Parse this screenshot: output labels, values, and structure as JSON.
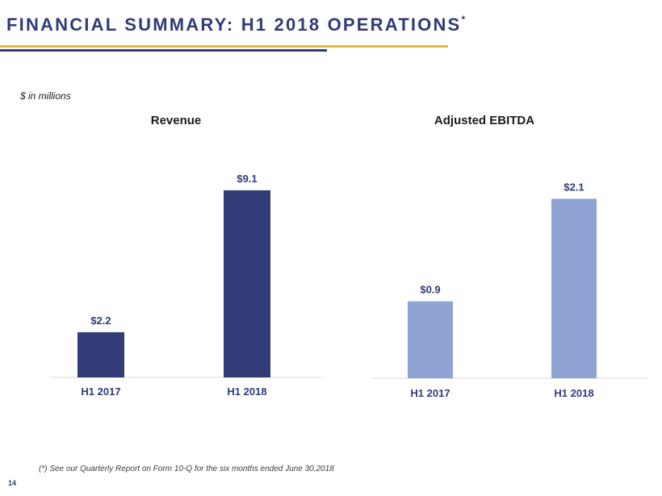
{
  "header": {
    "title": "FINANCIAL SUMMARY: H1 2018 OPERATIONS",
    "title_mark": "*"
  },
  "units_note": "$ in millions",
  "chart_data": [
    {
      "type": "bar",
      "title": "Revenue",
      "categories": [
        "H1 2017",
        "H1 2018"
      ],
      "values": [
        2.2,
        9.1
      ],
      "value_labels": [
        "$2.2",
        "$9.1"
      ],
      "color": "#323d78",
      "ylim": [
        0,
        10
      ],
      "grid": false,
      "legend": "none"
    },
    {
      "type": "bar",
      "title": "Adjusted EBITDA",
      "categories": [
        "H1 2017",
        "H1 2018"
      ],
      "values": [
        0.9,
        2.1
      ],
      "value_labels": [
        "$0.9",
        "$2.1"
      ],
      "color": "#8fa3d5",
      "ylim": [
        0,
        2.5
      ],
      "grid": false,
      "legend": "none"
    }
  ],
  "footnote": "(*) See our Quarterly Report on Form 10-Q for the six months ended June 30,2018",
  "page_number": "14",
  "colors": {
    "title": "#2f3a78",
    "accent_gold": "#e5b53a",
    "revenue_bar": "#323d78",
    "ebitda_bar": "#8fa3d5"
  }
}
